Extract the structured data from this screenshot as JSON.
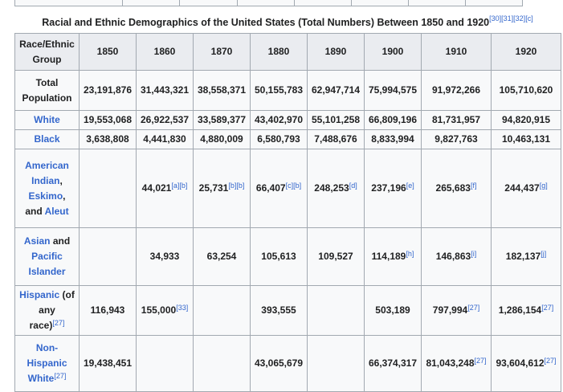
{
  "caption": {
    "text": "Racial and Ethnic Demographics of the United States (Total Numbers) Between 1850 and 1920",
    "refs": [
      {
        "text": "[30]"
      },
      {
        "text": "[31]"
      },
      {
        "text": "[32]"
      },
      {
        "text": "[c]"
      }
    ]
  },
  "table": {
    "header_label": [
      "Race/Ethnic",
      "Group"
    ],
    "years": [
      "1850",
      "1860",
      "1870",
      "1880",
      "1890",
      "1900",
      "1910",
      "1920"
    ],
    "rows": [
      {
        "label": [
          {
            "t": "Total",
            "link": false
          },
          {
            "t": "Population",
            "link": false
          }
        ],
        "cells": [
          {
            "v": "23,191,876"
          },
          {
            "v": "31,443,321"
          },
          {
            "v": "38,558,371"
          },
          {
            "v": "50,155,783"
          },
          {
            "v": "62,947,714"
          },
          {
            "v": "75,994,575"
          },
          {
            "v": "91,972,266"
          },
          {
            "v": "105,710,620"
          }
        ]
      },
      {
        "label": [
          {
            "t": "White",
            "link": true
          }
        ],
        "cells": [
          {
            "v": "19,553,068"
          },
          {
            "v": "26,922,537"
          },
          {
            "v": "33,589,377"
          },
          {
            "v": "43,402,970"
          },
          {
            "v": "55,101,258"
          },
          {
            "v": "66,809,196"
          },
          {
            "v": "81,731,957"
          },
          {
            "v": "94,820,915"
          }
        ]
      },
      {
        "label": [
          {
            "t": "Black",
            "link": true
          }
        ],
        "cells": [
          {
            "v": "3,638,808"
          },
          {
            "v": "4,441,830"
          },
          {
            "v": "4,880,009"
          },
          {
            "v": "6,580,793"
          },
          {
            "v": "7,488,676"
          },
          {
            "v": "8,833,994"
          },
          {
            "v": "9,827,763"
          },
          {
            "v": "10,463,131"
          }
        ]
      },
      {
        "label": [
          {
            "t": "American",
            "link": true
          },
          {
            "t": "Indian",
            "link": true,
            "after": ","
          },
          {
            "t": "Eskimo",
            "link": true,
            "after": ","
          },
          {
            "t": "and ",
            "link": false,
            "tail": "Aleut"
          }
        ],
        "cells": [
          {
            "v": ""
          },
          {
            "v": "44,021",
            "sup": "[a][b]"
          },
          {
            "v": "25,731",
            "sup": "[b][b]"
          },
          {
            "v": "66,407",
            "sup": "[c][b]"
          },
          {
            "v": "248,253",
            "sup": "[d]"
          },
          {
            "v": "237,196",
            "sup": "[e]"
          },
          {
            "v": "265,683",
            "sup": "[f]"
          },
          {
            "v": "244,437",
            "sup": "[g]"
          }
        ]
      },
      {
        "label": [
          {
            "t": "Asian",
            "link": true,
            "after_plain": " and"
          },
          {
            "t": "Pacific",
            "link": true
          },
          {
            "t": "Islander",
            "link": true
          }
        ],
        "cells": [
          {
            "v": ""
          },
          {
            "v": "34,933"
          },
          {
            "v": "63,254"
          },
          {
            "v": "105,613"
          },
          {
            "v": "109,527"
          },
          {
            "v": "114,189",
            "sup": "[h]"
          },
          {
            "v": "146,863",
            "sup": "[i]"
          },
          {
            "v": "182,137",
            "sup": "[j]"
          }
        ]
      },
      {
        "label": [
          {
            "t": "Hispanic",
            "link": true,
            "after_plain": " (of"
          },
          {
            "t": "any",
            "link": false
          },
          {
            "t": "race)",
            "link": false,
            "sup": "[27]"
          }
        ],
        "cells": [
          {
            "v": "116,943"
          },
          {
            "v": "155,000",
            "sup": "[33]"
          },
          {
            "v": ""
          },
          {
            "v": "393,555"
          },
          {
            "v": ""
          },
          {
            "v": "503,189"
          },
          {
            "v": "797,994",
            "sup": "[27]"
          },
          {
            "v": "1,286,154",
            "sup": "[27]"
          }
        ]
      },
      {
        "label": [
          {
            "t": "Non-",
            "link": true
          },
          {
            "t": "Hispanic",
            "link": true
          },
          {
            "t": "White",
            "link": true,
            "sup": "[27]"
          }
        ],
        "cells": [
          {
            "v": "19,438,451"
          },
          {
            "v": ""
          },
          {
            "v": ""
          },
          {
            "v": "43,065,679"
          },
          {
            "v": ""
          },
          {
            "v": "66,374,317"
          },
          {
            "v": "81,043,248",
            "sup": "[27]"
          },
          {
            "v": "93,604,612",
            "sup": "[27]"
          }
        ]
      }
    ]
  },
  "colors": {
    "link": "#3366cc",
    "header_bg": "#eaecf0",
    "cell_bg": "#f8f9fa",
    "border": "#a2a9b1"
  }
}
